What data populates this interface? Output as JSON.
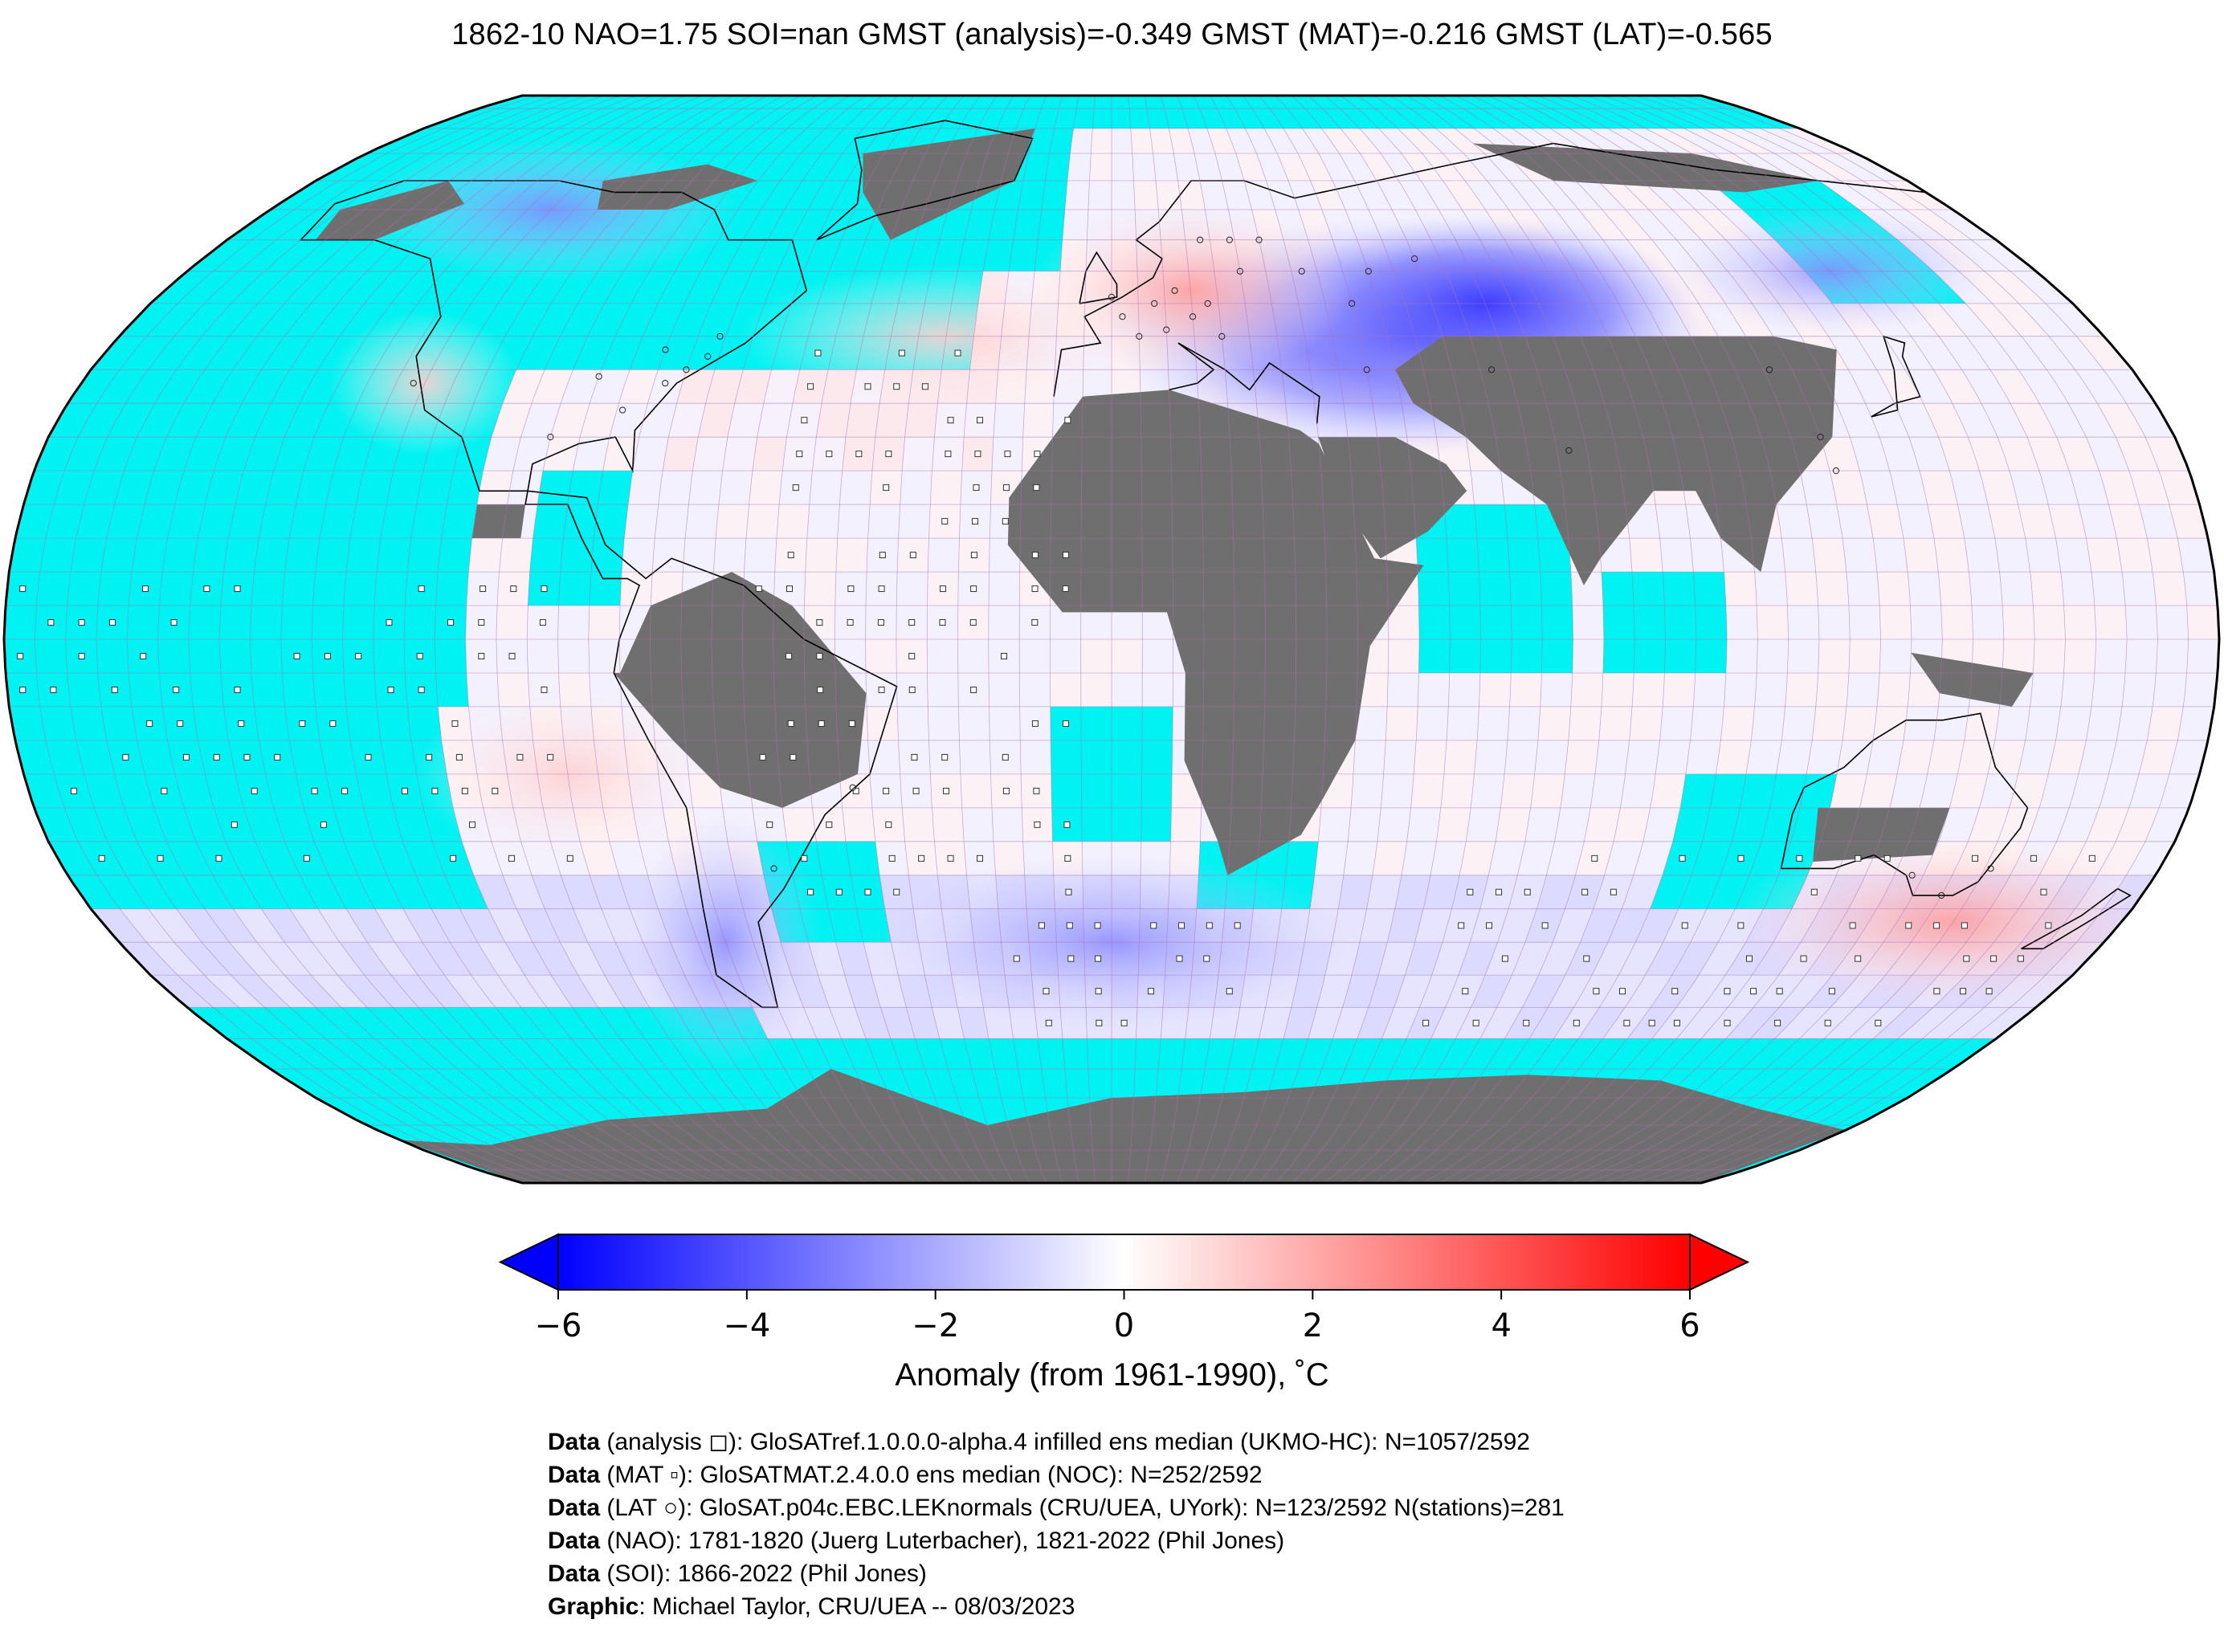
{
  "title": "1862-10 NAO=1.75 SOI=nan GMST (analysis)=-0.349 GMST (MAT)=-0.216 GMST (LAT)=-0.565",
  "map": {
    "projection": "Robinson",
    "ocean_color": "#00f2f2",
    "land_no_data_color": "#6f6f6f",
    "grid_color": "#b46fb4",
    "coastline_color": "#000000",
    "grid_cells": 2592,
    "cold_anomaly_regions": [
      "Central Asia / Caspian",
      "South Atlantic off Africa",
      "Southern South America",
      "North America Arctic"
    ],
    "warm_anomaly_regions": [
      "Central Europe",
      "South-west Pacific",
      "North Atlantic",
      "Western North America"
    ]
  },
  "colorbar": {
    "vmin": -6,
    "vmax": 6,
    "ticks": [
      "−6",
      "−4",
      "−2",
      "0",
      "2",
      "4",
      "6"
    ],
    "tick_values": [
      -6,
      -4,
      -2,
      0,
      2,
      4,
      6
    ],
    "extend": "both",
    "min_color": "#0000ff",
    "mid_color": "#ffffff",
    "max_color": "#ff0000",
    "label": "Anomaly (from 1961-1990), ˚C"
  },
  "credits": [
    {
      "bold": "Data",
      "text": " (analysis ◻): GloSATref.1.0.0.0-alpha.4 infilled ens median (UKMO-HC): N=1057/2592"
    },
    {
      "bold": "Data",
      "text": " (MAT ▫): GloSATMAT.2.4.0.0 ens median (NOC): N=252/2592"
    },
    {
      "bold": "Data",
      "text": " (LAT ○): GloSAT.p04c.EBC.LEKnormals (CRU/UEA, UYork): N=123/2592 N(stations)=281"
    },
    {
      "bold": "Data",
      "text": " (NAO): 1781-1820 (Juerg Luterbacher), 1821-2022 (Phil Jones)"
    },
    {
      "bold": "Data",
      "text": " (SOI): 1866-2022 (Phil Jones)"
    },
    {
      "bold": "Graphic",
      "text": ": Michael Taylor, CRU/UEA -- 08/03/2023"
    }
  ]
}
